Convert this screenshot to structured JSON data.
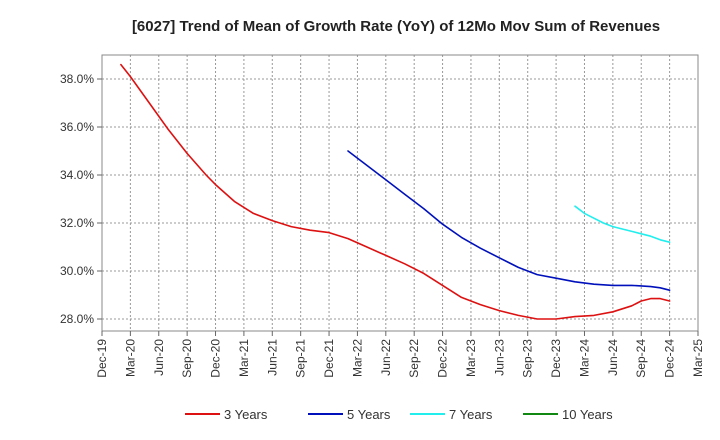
{
  "chart_data": {
    "type": "line",
    "title": "[6027]  Trend of Mean of Growth Rate (YoY) of 12Mo Mov Sum of Revenues",
    "xlabel": "",
    "ylabel": "",
    "ylim": [
      27.5,
      39.0
    ],
    "yticks": [
      28.0,
      30.0,
      32.0,
      34.0,
      36.0,
      38.0
    ],
    "ytick_labels": [
      "28.0%",
      "30.0%",
      "32.0%",
      "34.0%",
      "36.0%",
      "38.0%"
    ],
    "x_start": "2019-12",
    "x_end": "2025-03",
    "xticks": [
      {
        "label": "Dec-19",
        "m": 0
      },
      {
        "label": "Mar-20",
        "m": 3
      },
      {
        "label": "Jun-20",
        "m": 6
      },
      {
        "label": "Sep-20",
        "m": 9
      },
      {
        "label": "Dec-20",
        "m": 12
      },
      {
        "label": "Mar-21",
        "m": 15
      },
      {
        "label": "Jun-21",
        "m": 18
      },
      {
        "label": "Sep-21",
        "m": 21
      },
      {
        "label": "Dec-21",
        "m": 24
      },
      {
        "label": "Mar-22",
        "m": 27
      },
      {
        "label": "Jun-22",
        "m": 30
      },
      {
        "label": "Sep-22",
        "m": 33
      },
      {
        "label": "Dec-22",
        "m": 36
      },
      {
        "label": "Mar-23",
        "m": 39
      },
      {
        "label": "Jun-23",
        "m": 42
      },
      {
        "label": "Sep-23",
        "m": 45
      },
      {
        "label": "Dec-23",
        "m": 48
      },
      {
        "label": "Mar-24",
        "m": 51
      },
      {
        "label": "Jun-24",
        "m": 54
      },
      {
        "label": "Sep-24",
        "m": 57
      },
      {
        "label": "Dec-24",
        "m": 60
      },
      {
        "label": "Mar-25",
        "m": 63
      }
    ],
    "grid": true,
    "legend_position": "bottom",
    "series": [
      {
        "name": "3 Years",
        "color": "#dd1111",
        "x": [
          2,
          3,
          5,
          7,
          9,
          11,
          12,
          14,
          16,
          18,
          20,
          22,
          24,
          26,
          28,
          30,
          32,
          34,
          36,
          38,
          40,
          42,
          44,
          46,
          48,
          50,
          52,
          54,
          56,
          57,
          58,
          59,
          60
        ],
        "values": [
          38.6,
          38.1,
          37.0,
          35.9,
          34.9,
          34.0,
          33.6,
          32.9,
          32.4,
          32.1,
          31.85,
          31.7,
          31.6,
          31.35,
          31.0,
          30.65,
          30.3,
          29.9,
          29.4,
          28.9,
          28.6,
          28.35,
          28.15,
          28.0,
          28.0,
          28.1,
          28.15,
          28.3,
          28.55,
          28.75,
          28.85,
          28.85,
          28.75
        ]
      },
      {
        "name": "5 Years",
        "color": "#0011bb",
        "x": [
          26,
          28,
          30,
          32,
          34,
          36,
          38,
          40,
          42,
          44,
          46,
          48,
          50,
          52,
          54,
          56,
          57,
          58,
          59,
          60
        ],
        "values": [
          35.0,
          34.4,
          33.8,
          33.2,
          32.6,
          31.95,
          31.4,
          30.95,
          30.55,
          30.15,
          29.85,
          29.7,
          29.55,
          29.45,
          29.4,
          29.4,
          29.38,
          29.35,
          29.3,
          29.2
        ]
      },
      {
        "name": "7 Years",
        "color": "#22eeee",
        "x": [
          50,
          51,
          52,
          53,
          54,
          55,
          56,
          57,
          58,
          59,
          60
        ],
        "values": [
          32.7,
          32.4,
          32.2,
          32.0,
          31.85,
          31.75,
          31.65,
          31.55,
          31.45,
          31.3,
          31.2
        ]
      },
      {
        "name": "10 Years",
        "color": "#118811",
        "x": [],
        "values": []
      }
    ]
  }
}
